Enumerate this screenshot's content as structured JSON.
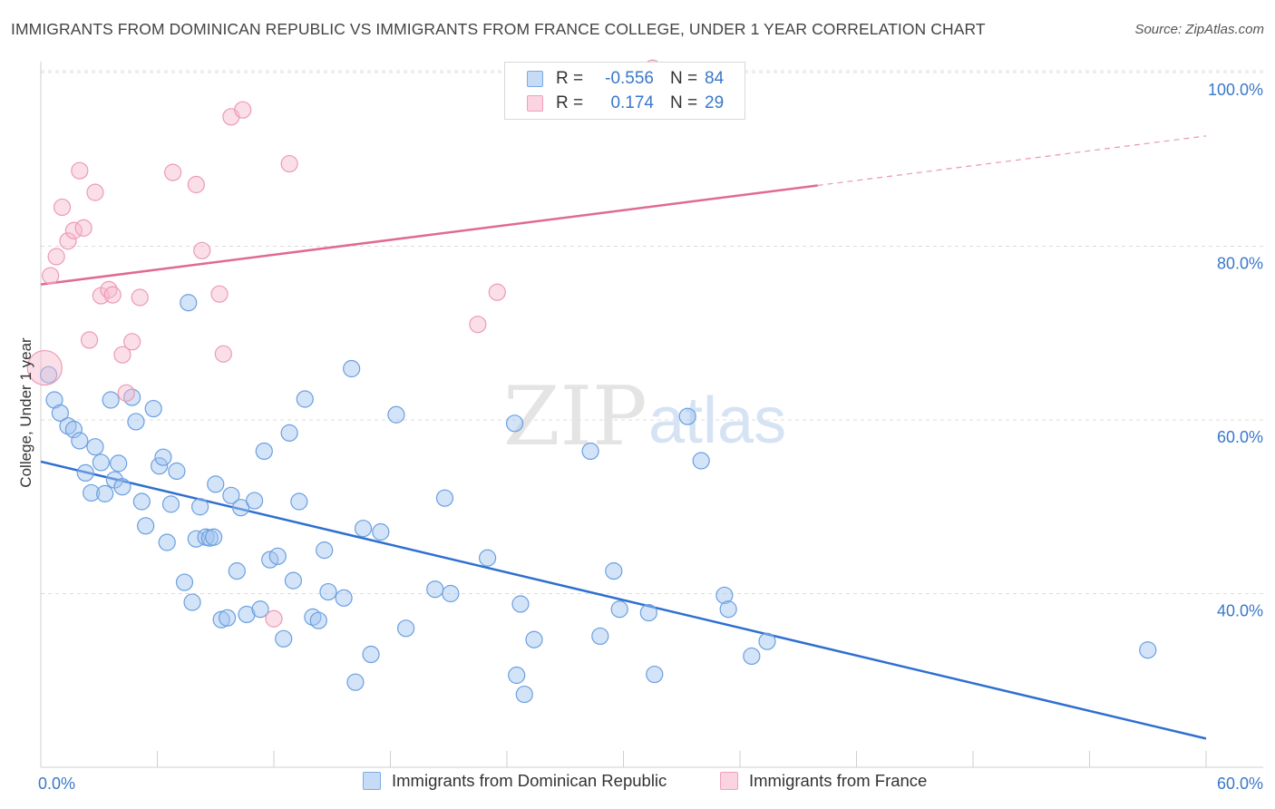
{
  "header": {
    "title": "IMMIGRANTS FROM DOMINICAN REPUBLIC VS IMMIGRANTS FROM FRANCE COLLEGE, UNDER 1 YEAR CORRELATION CHART",
    "source": "Source: ZipAtlas.com"
  },
  "watermark": {
    "zip": "ZIP",
    "atlas": "atlas"
  },
  "legend_top": {
    "rows": [
      {
        "r_label": "R =",
        "r_value": "-0.556",
        "n_label": "N =",
        "n_value": "84",
        "color": "#7aaae6"
      },
      {
        "r_label": "R =",
        "r_value": "0.174",
        "n_label": "N =",
        "n_value": "29",
        "color": "#f0a0ba"
      }
    ]
  },
  "chart_data": {
    "type": "scatter",
    "title": "IMMIGRANTS FROM DOMINICAN REPUBLIC VS IMMIGRANTS FROM FRANCE COLLEGE, UNDER 1 YEAR CORRELATION CHART",
    "xlabel": "",
    "ylabel": "College, Under 1 year",
    "xlim": [
      0,
      60
    ],
    "ylim": [
      20,
      102
    ],
    "x_ticks": [
      "0.0%",
      "60.0%"
    ],
    "y_ticks": [
      {
        "value": 100,
        "label": "100.0%"
      },
      {
        "value": 80,
        "label": "80.0%"
      },
      {
        "value": 60,
        "label": "60.0%"
      },
      {
        "value": 40,
        "label": "40.0%"
      }
    ],
    "grid": true,
    "legend_position": "bottom",
    "series": [
      {
        "name": "Immigrants from Dominican Republic",
        "color": "#7aaae6",
        "stroke": "#6a9fe0",
        "fill": "rgba(160,196,240,0.45)",
        "trend": {
          "x": [
            0,
            60
          ],
          "y": [
            55.2,
            23.3
          ],
          "color": "#2e6fd0"
        },
        "points": [
          [
            0.4,
            65.2
          ],
          [
            0.7,
            62.3
          ],
          [
            1.0,
            60.8
          ],
          [
            1.4,
            59.3
          ],
          [
            1.7,
            58.9
          ],
          [
            2.0,
            57.6
          ],
          [
            2.3,
            53.9
          ],
          [
            2.6,
            51.6
          ],
          [
            2.8,
            56.9
          ],
          [
            3.1,
            55.1
          ],
          [
            3.3,
            51.5
          ],
          [
            3.6,
            62.3
          ],
          [
            3.8,
            53.1
          ],
          [
            4.0,
            55.0
          ],
          [
            4.2,
            52.3
          ],
          [
            4.7,
            62.6
          ],
          [
            4.9,
            59.8
          ],
          [
            5.2,
            50.6
          ],
          [
            5.4,
            47.8
          ],
          [
            5.8,
            61.3
          ],
          [
            6.1,
            54.7
          ],
          [
            6.3,
            55.7
          ],
          [
            6.5,
            45.9
          ],
          [
            6.7,
            50.3
          ],
          [
            7.0,
            54.1
          ],
          [
            7.4,
            41.3
          ],
          [
            7.6,
            73.5
          ],
          [
            7.8,
            39.0
          ],
          [
            8.0,
            46.3
          ],
          [
            8.2,
            50.0
          ],
          [
            8.5,
            46.5
          ],
          [
            8.7,
            46.4
          ],
          [
            9.0,
            52.6
          ],
          [
            9.3,
            37.0
          ],
          [
            9.6,
            37.2
          ],
          [
            9.8,
            51.3
          ],
          [
            10.1,
            42.6
          ],
          [
            10.3,
            49.9
          ],
          [
            10.6,
            37.6
          ],
          [
            11.0,
            50.7
          ],
          [
            11.3,
            38.2
          ],
          [
            11.5,
            56.4
          ],
          [
            11.8,
            43.9
          ],
          [
            12.2,
            44.3
          ],
          [
            12.5,
            34.8
          ],
          [
            12.8,
            58.5
          ],
          [
            13.0,
            41.5
          ],
          [
            13.3,
            50.6
          ],
          [
            13.6,
            62.4
          ],
          [
            14.0,
            37.3
          ],
          [
            14.3,
            36.9
          ],
          [
            14.6,
            45.0
          ],
          [
            14.8,
            40.2
          ],
          [
            15.6,
            39.5
          ],
          [
            16.0,
            65.9
          ],
          [
            16.6,
            47.5
          ],
          [
            17.0,
            33.0
          ],
          [
            17.5,
            47.1
          ],
          [
            18.3,
            60.6
          ],
          [
            18.8,
            36.0
          ],
          [
            20.3,
            40.5
          ],
          [
            20.8,
            51.0
          ],
          [
            21.1,
            40.0
          ],
          [
            23.0,
            44.1
          ],
          [
            24.4,
            59.6
          ],
          [
            24.7,
            38.8
          ],
          [
            24.9,
            28.4
          ],
          [
            24.5,
            30.6
          ],
          [
            25.4,
            34.7
          ],
          [
            28.3,
            56.4
          ],
          [
            28.8,
            35.1
          ],
          [
            29.5,
            42.6
          ],
          [
            29.8,
            38.2
          ],
          [
            31.3,
            37.8
          ],
          [
            31.6,
            30.7
          ],
          [
            33.3,
            60.4
          ],
          [
            34.0,
            55.3
          ],
          [
            35.2,
            39.8
          ],
          [
            35.4,
            38.2
          ],
          [
            36.6,
            32.8
          ],
          [
            37.4,
            34.5
          ],
          [
            8.9,
            46.5
          ],
          [
            16.2,
            29.8
          ],
          [
            57.0,
            33.5
          ]
        ]
      },
      {
        "name": "Immigrants from France",
        "color": "#f0a0ba",
        "stroke": "#ec9ab4",
        "fill": "rgba(246,184,204,0.45)",
        "trend": {
          "x": [
            0,
            60
          ],
          "y": [
            75.6,
            92.7
          ],
          "color": "#e06a93",
          "solid_until_x": 40
        },
        "points": [
          [
            0.2,
            66.0
          ],
          [
            0.5,
            76.6
          ],
          [
            0.8,
            78.8
          ],
          [
            1.1,
            84.5
          ],
          [
            1.4,
            80.6
          ],
          [
            1.7,
            81.8
          ],
          [
            2.0,
            88.7
          ],
          [
            2.2,
            82.1
          ],
          [
            2.5,
            69.2
          ],
          [
            2.8,
            86.2
          ],
          [
            3.1,
            74.3
          ],
          [
            3.5,
            75.0
          ],
          [
            3.7,
            74.4
          ],
          [
            4.2,
            67.5
          ],
          [
            4.4,
            63.1
          ],
          [
            4.7,
            69.0
          ],
          [
            5.1,
            74.1
          ],
          [
            6.8,
            88.5
          ],
          [
            8.0,
            87.1
          ],
          [
            8.3,
            79.5
          ],
          [
            9.2,
            74.5
          ],
          [
            9.4,
            67.6
          ],
          [
            9.8,
            94.9
          ],
          [
            10.4,
            95.7
          ],
          [
            12.0,
            37.1
          ],
          [
            12.8,
            89.5
          ],
          [
            22.5,
            71.0
          ],
          [
            23.5,
            74.7
          ],
          [
            31.5,
            100.5
          ]
        ]
      }
    ]
  },
  "legend_bottom": {
    "items": [
      {
        "label": "Immigrants from Dominican Republic",
        "color": "#7aaae6"
      },
      {
        "label": "Immigrants from France",
        "color": "#f0a0ba"
      }
    ]
  }
}
